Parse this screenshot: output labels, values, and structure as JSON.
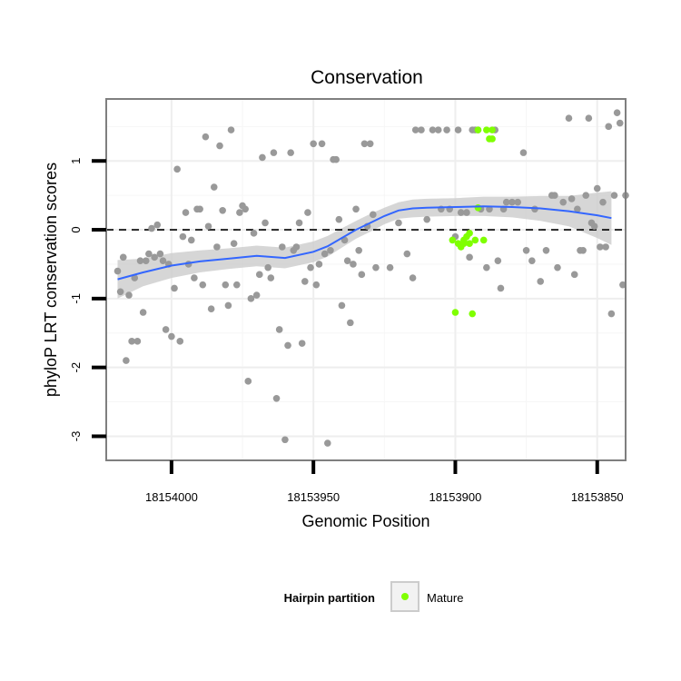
{
  "chart_data": {
    "type": "scatter",
    "title": "Conservation",
    "xlabel": "Genomic Position",
    "ylabel": "phyloP LRT conservation scores",
    "x_reversed": true,
    "xlim": [
      18154023,
      18153840
    ],
    "ylim": [
      -3.35,
      1.9
    ],
    "x_ticks": [
      18154000,
      18153950,
      18153900,
      18153850
    ],
    "x_tick_labels": [
      "18154000",
      "18153950",
      "18153900",
      "18153850"
    ],
    "y_ticks": [
      -3,
      -2,
      -1,
      0,
      1
    ],
    "y_tick_labels": [
      "-3",
      "-2",
      "-1",
      "0",
      "1"
    ],
    "grid": true,
    "reference_line": {
      "y": 0,
      "style": "dashed"
    },
    "legend": {
      "title": "Hairpin partition",
      "placement": "bottom",
      "entries": [
        "Mature"
      ]
    },
    "colors": {
      "other": "#999999",
      "mature": "#7fff00",
      "smooth": "#3366ff",
      "band": "#cccccc"
    },
    "series": [
      {
        "name": "",
        "values": [
          [
            18154019,
            -0.6
          ],
          [
            18154018,
            -0.9
          ],
          [
            18154017,
            -0.4
          ],
          [
            18154016,
            -1.9
          ],
          [
            18154015,
            -0.95
          ],
          [
            18154014,
            -1.62
          ],
          [
            18154013,
            -0.7
          ],
          [
            18154012,
            -1.62
          ],
          [
            18154011,
            -0.45
          ],
          [
            18154010,
            -1.2
          ],
          [
            18154009,
            -0.45
          ],
          [
            18154008,
            -0.35
          ],
          [
            18154007,
            0.02
          ],
          [
            18154006,
            -0.4
          ],
          [
            18154005,
            0.07
          ],
          [
            18154004,
            -0.35
          ],
          [
            18154003,
            -0.45
          ],
          [
            18154002,
            -1.45
          ],
          [
            18154001,
            -0.5
          ],
          [
            18154000,
            -1.55
          ],
          [
            18153999,
            -0.85
          ],
          [
            18153998,
            0.88
          ],
          [
            18153997,
            -1.62
          ],
          [
            18153996,
            -0.1
          ],
          [
            18153995,
            0.25
          ],
          [
            18153994,
            -0.5
          ],
          [
            18153993,
            -0.15
          ],
          [
            18153992,
            -0.7
          ],
          [
            18153991,
            0.3
          ],
          [
            18153990,
            0.3
          ],
          [
            18153989,
            -0.8
          ],
          [
            18153988,
            1.35
          ],
          [
            18153987,
            0.05
          ],
          [
            18153986,
            -1.15
          ],
          [
            18153985,
            0.62
          ],
          [
            18153984,
            -0.25
          ],
          [
            18153983,
            1.22
          ],
          [
            18153982,
            0.28
          ],
          [
            18153981,
            -0.8
          ],
          [
            18153980,
            -1.1
          ],
          [
            18153979,
            1.45
          ],
          [
            18153978,
            -0.2
          ],
          [
            18153977,
            -0.8
          ],
          [
            18153976,
            0.25
          ],
          [
            18153975,
            0.35
          ],
          [
            18153974,
            0.3
          ],
          [
            18153973,
            -2.2
          ],
          [
            18153972,
            -1.0
          ],
          [
            18153971,
            -0.05
          ],
          [
            18153970,
            -0.95
          ],
          [
            18153969,
            -0.65
          ],
          [
            18153968,
            1.05
          ],
          [
            18153967,
            0.1
          ],
          [
            18153966,
            -0.55
          ],
          [
            18153965,
            -0.7
          ],
          [
            18153964,
            1.12
          ],
          [
            18153963,
            -2.45
          ],
          [
            18153962,
            -1.45
          ],
          [
            18153961,
            -0.25
          ],
          [
            18153960,
            -3.05
          ],
          [
            18153959,
            -1.68
          ],
          [
            18153958,
            1.12
          ],
          [
            18153957,
            -0.3
          ],
          [
            18153956,
            -0.25
          ],
          [
            18153955,
            0.1
          ],
          [
            18153954,
            -1.65
          ],
          [
            18153953,
            -0.75
          ],
          [
            18153952,
            0.25
          ],
          [
            18153951,
            -0.55
          ],
          [
            18153950,
            1.25
          ],
          [
            18153949,
            -0.8
          ],
          [
            18153948,
            -0.5
          ],
          [
            18153947,
            1.25
          ],
          [
            18153946,
            -0.35
          ],
          [
            18153945,
            -3.1
          ],
          [
            18153944,
            -0.3
          ],
          [
            18153943,
            1.02
          ],
          [
            18153942,
            1.02
          ],
          [
            18153941,
            0.15
          ],
          [
            18153940,
            -1.1
          ],
          [
            18153939,
            -0.15
          ],
          [
            18153938,
            -0.45
          ],
          [
            18153937,
            -1.35
          ],
          [
            18153936,
            -0.5
          ],
          [
            18153935,
            0.3
          ],
          [
            18153934,
            -0.3
          ],
          [
            18153933,
            -0.65
          ],
          [
            18153932,
            1.25
          ],
          [
            18153931,
            0.05
          ],
          [
            18153930,
            1.25
          ],
          [
            18153929,
            0.22
          ],
          [
            18153928,
            -0.55
          ],
          [
            18153923,
            -0.55
          ],
          [
            18153920,
            0.1
          ],
          [
            18153917,
            -0.35
          ],
          [
            18153915,
            -0.7
          ],
          [
            18153914,
            1.45
          ],
          [
            18153912,
            1.45
          ],
          [
            18153910,
            0.15
          ],
          [
            18153908,
            1.45
          ],
          [
            18153906,
            1.45
          ],
          [
            18153905,
            0.3
          ],
          [
            18153903,
            1.45
          ],
          [
            18153902,
            0.3
          ],
          [
            18153900,
            -0.1
          ],
          [
            18153899,
            1.45
          ],
          [
            18153898,
            0.25
          ],
          [
            18153896,
            0.25
          ],
          [
            18153895,
            -0.4
          ],
          [
            18153894,
            1.45
          ],
          [
            18153893,
            1.45
          ],
          [
            18153892,
            1.45
          ],
          [
            18153891,
            0.3
          ],
          [
            18153889,
            -0.55
          ],
          [
            18153888,
            0.3
          ],
          [
            18153886,
            1.45
          ],
          [
            18153885,
            -0.45
          ],
          [
            18153884,
            -0.85
          ],
          [
            18153883,
            0.3
          ],
          [
            18153882,
            0.4
          ],
          [
            18153880,
            0.4
          ],
          [
            18153878,
            0.4
          ],
          [
            18153876,
            1.12
          ],
          [
            18153875,
            -0.3
          ],
          [
            18153873,
            -0.45
          ],
          [
            18153872,
            0.3
          ],
          [
            18153870,
            -0.75
          ],
          [
            18153868,
            -0.3
          ],
          [
            18153866,
            0.5
          ],
          [
            18153865,
            0.5
          ],
          [
            18153864,
            -0.55
          ],
          [
            18153862,
            0.4
          ],
          [
            18153860,
            1.62
          ],
          [
            18153859,
            0.45
          ],
          [
            18153858,
            -0.65
          ],
          [
            18153857,
            0.3
          ],
          [
            18153856,
            -0.3
          ],
          [
            18153855,
            -0.3
          ],
          [
            18153854,
            0.5
          ],
          [
            18153853,
            1.62
          ],
          [
            18153852,
            0.1
          ],
          [
            18153851,
            0.05
          ],
          [
            18153850,
            0.6
          ],
          [
            18153849,
            -0.25
          ],
          [
            18153848,
            0.4
          ],
          [
            18153847,
            -0.25
          ],
          [
            18153846,
            1.5
          ],
          [
            18153845,
            -1.22
          ],
          [
            18153844,
            0.5
          ],
          [
            18153843,
            1.7
          ],
          [
            18153842,
            1.55
          ],
          [
            18153841,
            -0.8
          ],
          [
            18153840,
            0.5
          ]
        ]
      },
      {
        "name": "Mature",
        "values": [
          [
            18153901,
            -0.15
          ],
          [
            18153900,
            -1.2
          ],
          [
            18153899,
            -0.2
          ],
          [
            18153898,
            -0.25
          ],
          [
            18153897,
            -0.15
          ],
          [
            18153896,
            -0.1
          ],
          [
            18153895,
            -0.2
          ],
          [
            18153894,
            -1.22
          ],
          [
            18153893,
            -0.15
          ],
          [
            18153892,
            0.32
          ],
          [
            18153892,
            1.45
          ],
          [
            18153890,
            -0.15
          ],
          [
            18153889,
            1.45
          ],
          [
            18153888,
            1.32
          ],
          [
            18153887,
            1.45
          ],
          [
            18153887,
            1.32
          ],
          [
            18153897,
            -0.2
          ],
          [
            18153895,
            -0.05
          ]
        ]
      }
    ],
    "smooth": {
      "x": [
        18154019,
        18154010,
        18154000,
        18153990,
        18153980,
        18153970,
        18153960,
        18153950,
        18153945,
        18153940,
        18153935,
        18153930,
        18153925,
        18153920,
        18153915,
        18153910,
        18153900,
        18153890,
        18153880,
        18153870,
        18153860,
        18153850,
        18153845
      ],
      "y": [
        -0.72,
        -0.62,
        -0.52,
        -0.46,
        -0.42,
        -0.38,
        -0.41,
        -0.32,
        -0.24,
        -0.12,
        0.0,
        0.1,
        0.2,
        0.28,
        0.31,
        0.32,
        0.33,
        0.34,
        0.33,
        0.31,
        0.27,
        0.21,
        0.17
      ],
      "lower": [
        -1.0,
        -0.82,
        -0.7,
        -0.62,
        -0.57,
        -0.53,
        -0.56,
        -0.47,
        -0.39,
        -0.26,
        -0.13,
        -0.03,
        0.08,
        0.16,
        0.18,
        0.19,
        0.2,
        0.2,
        0.18,
        0.13,
        0.05,
        -0.12,
        -0.22
      ],
      "upper": [
        -0.44,
        -0.42,
        -0.34,
        -0.3,
        -0.27,
        -0.23,
        -0.26,
        -0.17,
        -0.09,
        0.02,
        0.13,
        0.23,
        0.32,
        0.4,
        0.44,
        0.45,
        0.46,
        0.48,
        0.48,
        0.49,
        0.49,
        0.54,
        0.56
      ]
    }
  }
}
